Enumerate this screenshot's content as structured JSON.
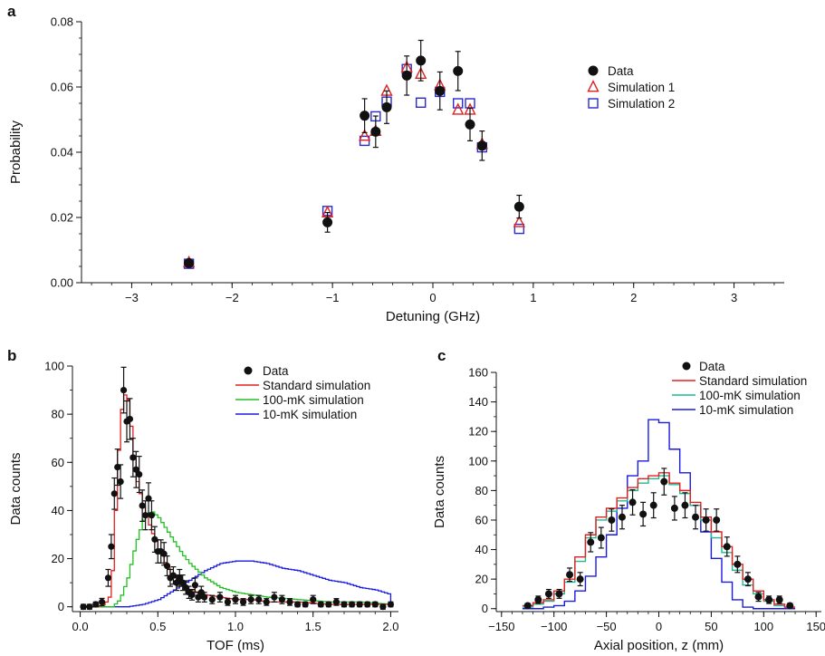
{
  "colors": {
    "data": "#111111",
    "simulation1": "#e02020",
    "simulation2": "#2a2ad0",
    "standard": "#e02020",
    "hundred_mK": "#22c022",
    "ten_mK": "#1a1ae0",
    "hundred_mK_c": "#20b890"
  },
  "chart_data": [
    {
      "panel": "a",
      "type": "scatter",
      "xlabel": "Detuning (GHz)",
      "ylabel": "Probability",
      "xlim": [
        -3.5,
        3.5
      ],
      "ylim": [
        0,
        0.08
      ],
      "xticks": [
        -3,
        -2,
        -1,
        0,
        1,
        2,
        3
      ],
      "xtick_labels": [
        "−3",
        "−2",
        "−1",
        "0",
        "1",
        "2",
        "3"
      ],
      "yticks": [
        0,
        0.02,
        0.04,
        0.06,
        0.08
      ],
      "ytick_labels": [
        "0.00",
        "0.02",
        "0.04",
        "0.06",
        "0.08"
      ],
      "legend_placement": "top-right",
      "series": [
        {
          "name": "Data",
          "marker": "filled-circle",
          "color": "#111111",
          "x": [
            -2.43,
            -1.05,
            -0.68,
            -0.57,
            -0.46,
            -0.26,
            -0.12,
            0.07,
            0.25,
            0.37,
            0.49,
            0.86
          ],
          "y": [
            0.006,
            0.0185,
            0.0512,
            0.0463,
            0.0538,
            0.0635,
            0.0681,
            0.0588,
            0.0649,
            0.0485,
            0.042,
            0.0233
          ],
          "yerr": [
            0.0012,
            0.003,
            0.0052,
            0.0048,
            0.005,
            0.006,
            0.0062,
            0.0058,
            0.006,
            0.005,
            0.0045,
            0.0035
          ]
        },
        {
          "name": "Simulation 1",
          "marker": "open-triangle",
          "color": "#e02020",
          "x": [
            -2.43,
            -1.05,
            -0.68,
            -0.57,
            -0.46,
            -0.26,
            -0.12,
            0.07,
            0.25,
            0.37,
            0.49,
            0.86
          ],
          "y": [
            0.0062,
            0.0215,
            0.045,
            0.0465,
            0.0588,
            0.066,
            0.064,
            0.0605,
            0.053,
            0.053,
            0.0425,
            0.0185
          ]
        },
        {
          "name": "Simulation 2",
          "marker": "open-square",
          "color": "#2a2ad0",
          "x": [
            -2.43,
            -1.05,
            -0.68,
            -0.57,
            -0.46,
            -0.26,
            -0.12,
            0.07,
            0.25,
            0.37,
            0.49,
            0.86
          ],
          "y": [
            0.0058,
            0.022,
            0.0435,
            0.051,
            0.0555,
            0.0655,
            0.0552,
            0.0585,
            0.055,
            0.055,
            0.0415,
            0.0165
          ]
        }
      ]
    },
    {
      "panel": "b",
      "type": "line",
      "xlabel": "TOF (ms)",
      "ylabel": "Data counts",
      "xlim": [
        -0.05,
        2.05
      ],
      "ylim": [
        -2,
        100
      ],
      "xticks": [
        0,
        0.5,
        1,
        1.5,
        2
      ],
      "xtick_labels": [
        "0.0",
        "0.5",
        "1.0",
        "1.5",
        "2.0"
      ],
      "yticks": [
        0,
        20,
        40,
        60,
        80,
        100
      ],
      "ytick_labels": [
        "0",
        "20",
        "40",
        "60",
        "80",
        "100"
      ],
      "legend_placement": "top-right",
      "legend": [
        "Data",
        "Standard simulation",
        "100-mK simulation",
        "10-mK simulation"
      ],
      "data_points": {
        "x": [
          0.02,
          0.06,
          0.1,
          0.14,
          0.18,
          0.2,
          0.22,
          0.24,
          0.26,
          0.28,
          0.3,
          0.32,
          0.34,
          0.36,
          0.38,
          0.4,
          0.42,
          0.44,
          0.46,
          0.48,
          0.5,
          0.52,
          0.54,
          0.56,
          0.58,
          0.6,
          0.62,
          0.64,
          0.66,
          0.68,
          0.7,
          0.72,
          0.74,
          0.76,
          0.78,
          0.8,
          0.85,
          0.9,
          0.95,
          1.0,
          1.05,
          1.1,
          1.15,
          1.2,
          1.25,
          1.3,
          1.35,
          1.4,
          1.45,
          1.5,
          1.55,
          1.6,
          1.65,
          1.7,
          1.75,
          1.8,
          1.85,
          1.9,
          1.95,
          2.0
        ],
        "y": [
          0,
          0,
          1,
          2,
          12,
          25,
          47,
          58,
          52,
          90,
          77,
          78,
          62,
          57,
          55,
          42,
          38,
          45,
          38,
          28,
          23,
          23,
          22,
          17,
          12,
          13,
          10,
          12,
          10,
          8,
          6,
          5,
          9,
          4,
          6,
          4,
          3,
          4,
          2,
          3,
          2,
          3,
          3,
          2,
          4,
          3,
          2,
          1,
          1,
          3,
          1,
          1,
          2,
          1,
          1,
          1,
          1,
          1,
          0,
          1
        ],
        "yerr": [
          1,
          1,
          1,
          1.5,
          3.5,
          5,
          6.5,
          7.5,
          7,
          9.5,
          8.5,
          8.5,
          8,
          7.5,
          7.5,
          6.5,
          6,
          6.5,
          6,
          5.3,
          4.8,
          4.8,
          4.7,
          4.1,
          3.5,
          3.6,
          3.2,
          3.5,
          3.2,
          2.8,
          2.5,
          2.2,
          3,
          2,
          2.5,
          2,
          1.7,
          2,
          1.4,
          1.7,
          1.4,
          1.7,
          1.7,
          1.4,
          2,
          1.7,
          1.4,
          1,
          1,
          1.7,
          1,
          1,
          1.4,
          1,
          1,
          1,
          1,
          1,
          1,
          1
        ]
      },
      "curves": [
        {
          "name": "Standard simulation",
          "color": "#e02020",
          "x": [
            0.0,
            0.1,
            0.15,
            0.18,
            0.2,
            0.22,
            0.24,
            0.26,
            0.28,
            0.3,
            0.32,
            0.34,
            0.36,
            0.4,
            0.45,
            0.5,
            0.55,
            0.6,
            0.65,
            0.7,
            0.8,
            0.9,
            1.0,
            1.1,
            1.2,
            1.4,
            1.6,
            1.8,
            2.0
          ],
          "y": [
            0,
            0,
            1,
            4,
            15,
            40,
            65,
            82,
            88,
            86,
            75,
            62,
            52,
            42,
            32,
            24,
            17,
            12,
            9,
            7,
            5,
            4,
            3,
            3,
            2,
            2,
            1,
            1,
            1
          ]
        },
        {
          "name": "100-mK simulation",
          "color": "#22c022",
          "x": [
            0.0,
            0.2,
            0.25,
            0.3,
            0.35,
            0.4,
            0.45,
            0.5,
            0.55,
            0.6,
            0.65,
            0.7,
            0.8,
            0.9,
            1.0,
            1.1,
            1.2,
            1.4,
            1.6,
            1.8,
            2.0
          ],
          "y": [
            0,
            0,
            3,
            12,
            26,
            36,
            40,
            37,
            32,
            27,
            22,
            18,
            12,
            8,
            6,
            5,
            4,
            3,
            2,
            2,
            1
          ]
        },
        {
          "name": "10-mK simulation",
          "color": "#1a1ae0",
          "x": [
            0.0,
            0.3,
            0.4,
            0.5,
            0.6,
            0.7,
            0.8,
            0.9,
            1.0,
            1.1,
            1.2,
            1.3,
            1.4,
            1.5,
            1.6,
            1.7,
            1.8,
            1.9,
            2.0
          ],
          "y": [
            0,
            0,
            1,
            3,
            7,
            11,
            15,
            18,
            19,
            19,
            18,
            16,
            15,
            13,
            11,
            10,
            8,
            7,
            5
          ]
        }
      ]
    },
    {
      "panel": "c",
      "type": "line",
      "xlabel": "Axial position, z (mm)",
      "ylabel": "Data counts",
      "xlim": [
        -155,
        155
      ],
      "ylim": [
        -2,
        160
      ],
      "xticks": [
        -150,
        -100,
        -50,
        0,
        50,
        100,
        150
      ],
      "xtick_labels": [
        "−150",
        "−100",
        "−50",
        "0",
        "50",
        "100",
        "150"
      ],
      "yticks": [
        0,
        20,
        40,
        60,
        80,
        100,
        120,
        140,
        160
      ],
      "ytick_labels": [
        "0",
        "20",
        "40",
        "60",
        "80",
        "100",
        "120",
        "140",
        "160"
      ],
      "legend_placement": "top-right",
      "legend": [
        "Data",
        "Standard simulation",
        "100-mK simulation",
        "10-mK simulation"
      ],
      "data_points": {
        "x": [
          -125,
          -115,
          -105,
          -95,
          -85,
          -75,
          -65,
          -55,
          -45,
          -35,
          -25,
          -15,
          -5,
          5,
          15,
          25,
          35,
          45,
          55,
          65,
          75,
          85,
          95,
          105,
          115,
          125
        ],
        "y": [
          2,
          6,
          10,
          10,
          23,
          20,
          45,
          48,
          60,
          62,
          72,
          64,
          70,
          86,
          68,
          70,
          62,
          60,
          60,
          42,
          30,
          20,
          8,
          6,
          6,
          2
        ],
        "yerr": [
          1.5,
          2.5,
          3,
          3,
          4.5,
          4.5,
          6.5,
          7,
          7.5,
          8,
          8.5,
          8,
          8.5,
          9,
          8,
          8.5,
          8,
          7.5,
          7.5,
          6.5,
          5.5,
          4.5,
          3,
          2.5,
          2.5,
          1.5
        ]
      },
      "curves": [
        {
          "name": "Standard simulation",
          "color": "#e02020",
          "edges": [
            -130,
            -120,
            -110,
            -100,
            -90,
            -80,
            -70,
            -60,
            -50,
            -40,
            -30,
            -20,
            -10,
            0,
            10,
            20,
            30,
            40,
            50,
            60,
            70,
            80,
            90,
            100,
            110,
            120,
            130
          ],
          "y": [
            2,
            4,
            6,
            12,
            20,
            35,
            50,
            62,
            68,
            75,
            82,
            88,
            90,
            92,
            85,
            80,
            72,
            62,
            52,
            42,
            30,
            20,
            12,
            6,
            3,
            1
          ]
        },
        {
          "name": "100-mK simulation",
          "color": "#20b890",
          "edges": [
            -130,
            -120,
            -110,
            -100,
            -90,
            -80,
            -70,
            -60,
            -50,
            -40,
            -30,
            -20,
            -10,
            0,
            10,
            20,
            30,
            40,
            50,
            60,
            70,
            80,
            90,
            100,
            110,
            120,
            130
          ],
          "y": [
            1,
            3,
            5,
            10,
            18,
            32,
            48,
            60,
            66,
            73,
            80,
            85,
            88,
            90,
            84,
            78,
            70,
            60,
            48,
            38,
            26,
            16,
            10,
            5,
            2,
            1
          ]
        },
        {
          "name": "10-mK simulation",
          "color": "#1a1ae0",
          "edges": [
            -130,
            -120,
            -110,
            -100,
            -90,
            -80,
            -70,
            -60,
            -50,
            -40,
            -30,
            -20,
            -10,
            0,
            10,
            20,
            30,
            40,
            50,
            60,
            70,
            80,
            90,
            100,
            110,
            120,
            130
          ],
          "y": [
            0,
            0,
            1,
            2,
            5,
            12,
            22,
            35,
            50,
            68,
            90,
            100,
            128,
            126,
            108,
            92,
            70,
            52,
            34,
            18,
            6,
            1,
            0,
            0,
            0,
            0
          ]
        }
      ]
    }
  ],
  "panels": {
    "a": {
      "letter": "a"
    },
    "b": {
      "letter": "b"
    },
    "c": {
      "letter": "c"
    }
  }
}
